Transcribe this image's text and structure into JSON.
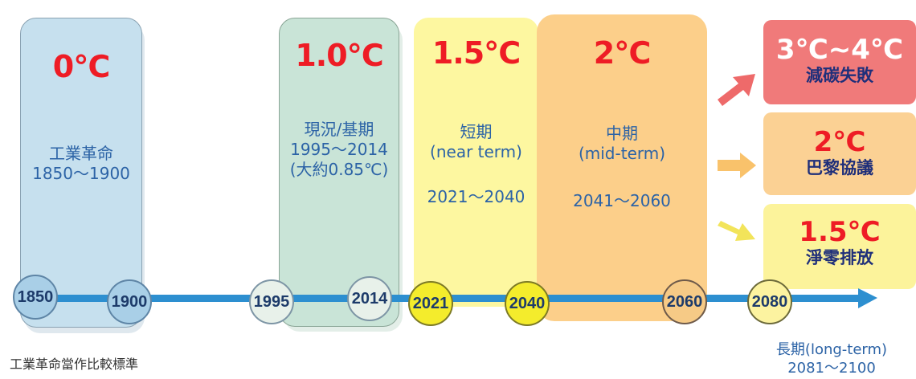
{
  "periods": {
    "industrial": {
      "temp": "0℃",
      "desc": "工業革命\n1850～1900"
    },
    "baseline": {
      "temp": "1.0℃",
      "desc": "現況/基期\n1995～2014\n(大約0.85℃)"
    },
    "near": {
      "temp": "1.5℃",
      "desc": "短期\n(near term)",
      "range": "2021～2040"
    },
    "mid": {
      "temp": "2℃",
      "desc": "中期\n(mid-term)",
      "range": "2041～2060"
    }
  },
  "outcomes": [
    {
      "temp": "3℃~4℃",
      "label": "減碳失敗"
    },
    {
      "temp": "2℃",
      "label": "巴黎協議"
    },
    {
      "temp": "1.5℃",
      "label": "淨零排放"
    }
  ],
  "timeline": [
    "1850",
    "1900",
    "1995",
    "2014",
    "2021",
    "2040",
    "2060",
    "2080"
  ],
  "caption": "工業革命當作比較標準",
  "long_term": "長期(long-term)\n2081～2100",
  "colors": {
    "industrial": "#c6e0ee",
    "baseline": "#c9e4d7",
    "near": "#fdf7a0",
    "mid": "#fccf8a",
    "timeline": "#2d8fd0",
    "outcome_fail": "#f07a7a",
    "outcome_paris": "#fbd194",
    "outcome_netzero": "#fcf39b"
  }
}
